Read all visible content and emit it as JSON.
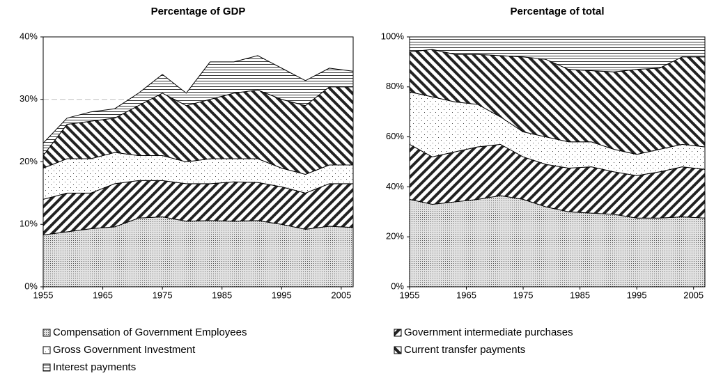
{
  "chart_data": [
    {
      "type": "stacked-area",
      "title": "Percentage of GDP",
      "x": [
        1955,
        1959,
        1963,
        1967,
        1971,
        1975,
        1979,
        1983,
        1987,
        1991,
        1995,
        1999,
        2003,
        2007
      ],
      "xlim": [
        1955,
        2007
      ],
      "xticks": [
        1955,
        1965,
        1975,
        1985,
        1995,
        2005
      ],
      "ylim": [
        0,
        40
      ],
      "yticks": [
        {
          "value": 0,
          "label": "0%"
        },
        {
          "value": 10,
          "label": "10%"
        },
        {
          "value": 20,
          "label": "20%"
        },
        {
          "value": 30,
          "label": "30%"
        },
        {
          "value": 40,
          "label": "40%"
        }
      ],
      "grid": true,
      "series": [
        {
          "name": "Compensation of Government Employees",
          "pattern": "dense-dots",
          "values": [
            8.3,
            8.8,
            9.3,
            9.6,
            11,
            11.2,
            10.5,
            10.6,
            10.5,
            10.6,
            10,
            9.2,
            9.7,
            9.5
          ]
        },
        {
          "name": "Government intermediate purchases",
          "pattern": "back-hatch",
          "values": [
            5.7,
            6.2,
            5.7,
            6.9,
            6,
            5.8,
            6,
            5.9,
            6.3,
            6.1,
            6,
            5.8,
            6.8,
            7
          ]
        },
        {
          "name": "Gross Government Investment",
          "pattern": "sparse-dots",
          "values": [
            5,
            5.5,
            5.5,
            5,
            4,
            4,
            3.5,
            4,
            3.7,
            3.8,
            3,
            3,
            3,
            3
          ]
        },
        {
          "name": "Current transfer payments",
          "pattern": "forward-hatch",
          "values": [
            2,
            5.5,
            6,
            5.5,
            8,
            10,
            9,
            9.5,
            10.5,
            11,
            11,
            11,
            12.5,
            12.5
          ]
        },
        {
          "name": "Interest payments",
          "pattern": "horizontal",
          "values": [
            2,
            1,
            1.5,
            1.5,
            2,
            3,
            2,
            6,
            5,
            5.5,
            5,
            4,
            3,
            2.5
          ]
        }
      ]
    },
    {
      "type": "stacked-area",
      "title": "Percentage of total",
      "x": [
        1955,
        1959,
        1963,
        1967,
        1971,
        1975,
        1979,
        1983,
        1987,
        1991,
        1995,
        1999,
        2003,
        2007
      ],
      "xlim": [
        1955,
        2007
      ],
      "xticks": [
        1955,
        1965,
        1975,
        1985,
        1995,
        2005
      ],
      "ylim": [
        0,
        100
      ],
      "yticks": [
        {
          "value": 0,
          "label": "0%"
        },
        {
          "value": 20,
          "label": "20%"
        },
        {
          "value": 40,
          "label": "40%"
        },
        {
          "value": 60,
          "label": "60%"
        },
        {
          "value": 80,
          "label": "80%"
        },
        {
          "value": 100,
          "label": "100%"
        }
      ],
      "grid": true,
      "series": [
        {
          "pattern": "dense-dots",
          "values": [
            35,
            33,
            34,
            35,
            36.5,
            35,
            32,
            30,
            29.5,
            29,
            27.5,
            27.5,
            28,
            27.5
          ]
        },
        {
          "pattern": "back-hatch",
          "values": [
            22,
            19,
            20,
            21,
            20.5,
            17,
            17,
            17.5,
            18.5,
            17,
            17,
            18.5,
            20,
            19.5
          ]
        },
        {
          "pattern": "sparse-dots",
          "values": [
            21,
            24,
            20,
            17,
            11,
            10,
            11,
            10.5,
            10,
            9,
            8.5,
            9,
            9,
            9
          ]
        },
        {
          "pattern": "forward-hatch",
          "values": [
            16,
            19,
            19,
            20,
            24.5,
            30,
            31,
            29,
            28.5,
            31,
            34,
            32.5,
            35,
            36
          ]
        },
        {
          "pattern": "horizontal",
          "values": [
            6,
            5,
            7,
            7,
            7.5,
            8,
            9,
            13,
            13.5,
            14,
            13,
            12.5,
            8,
            8
          ]
        }
      ]
    }
  ]
}
